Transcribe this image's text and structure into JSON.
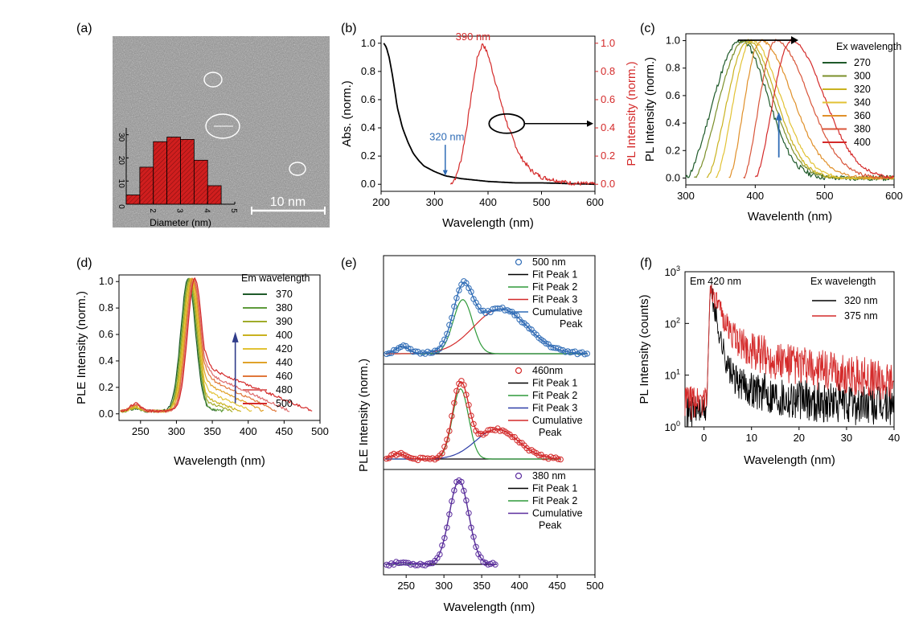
{
  "colors": {
    "black": "#000000",
    "red": "#d42a2a",
    "blue": "#2f6cb6",
    "green": "#2f9a3a",
    "purple": "#5b2c9e",
    "hist": "#d01e1e",
    "tem_bg": "#9a9a9a"
  },
  "chart_data": [
    {
      "panel": "(a)",
      "type": "bar",
      "title": "",
      "xlabel": "Diameter (nm)",
      "ylabel": "",
      "x_ticks": [
        "2",
        "3",
        "4",
        "5"
      ],
      "y_ticks": [
        "0",
        "10",
        "20",
        "30"
      ],
      "x": [
        1.25,
        1.75,
        2.25,
        2.75,
        3.25,
        3.75,
        4.25
      ],
      "values": [
        4,
        16,
        27,
        29,
        28,
        19,
        8
      ],
      "xlim": [
        1,
        5
      ],
      "ylim": [
        0,
        33
      ],
      "scale_bar": "10 nm"
    },
    {
      "panel": "(b)",
      "type": "line",
      "xlabel": "Wavelength (nm)",
      "ylabel": "Abs. (norm.)",
      "ylabel_right": "PL Intensity (norm.)",
      "xlim": [
        200,
        600
      ],
      "ylim": [
        -0.05,
        1.05
      ],
      "x_ticks": [
        "200",
        "300",
        "400",
        "500",
        "600"
      ],
      "y_ticks": [
        "0.0",
        "0.2",
        "0.4",
        "0.6",
        "0.8",
        "1.0"
      ],
      "annotations": [
        "390 nm",
        "320 nm"
      ],
      "series": [
        {
          "axis": "left",
          "color": "#000000",
          "x": [
            205,
            210,
            215,
            220,
            225,
            230,
            240,
            250,
            260,
            270,
            280,
            300,
            320,
            350,
            400,
            450,
            500,
            600
          ],
          "y": [
            1.0,
            0.97,
            0.9,
            0.8,
            0.68,
            0.55,
            0.4,
            0.3,
            0.22,
            0.17,
            0.13,
            0.09,
            0.06,
            0.04,
            0.02,
            0.01,
            0.01,
            0.0
          ]
        },
        {
          "axis": "right",
          "color": "#d42a2a",
          "x": [
            330,
            340,
            350,
            360,
            370,
            380,
            390,
            400,
            410,
            420,
            430,
            440,
            460,
            480,
            500,
            550,
            600
          ],
          "y": [
            0.0,
            0.05,
            0.18,
            0.4,
            0.66,
            0.9,
            1.0,
            0.92,
            0.78,
            0.64,
            0.5,
            0.38,
            0.2,
            0.1,
            0.05,
            0.01,
            0.0
          ]
        }
      ]
    },
    {
      "panel": "(c)",
      "type": "line",
      "xlabel": "Wavelenth (nm)",
      "ylabel": "PL Intensity (norm.)",
      "legend_title": "Ex wavelength",
      "xlim": [
        300,
        600
      ],
      "ylim": [
        -0.05,
        1.05
      ],
      "x_ticks": [
        "300",
        "400",
        "500",
        "600"
      ],
      "y_ticks": [
        "0.0",
        "0.2",
        "0.4",
        "0.6",
        "0.8",
        "1.0"
      ],
      "series": [
        {
          "name": "270",
          "color": "#1f5a2a",
          "peak": 380,
          "start": 300,
          "width": 50
        },
        {
          "name": "300",
          "color": "#7b8f2a",
          "peak": 385,
          "start": 312,
          "width": 52
        },
        {
          "name": "320",
          "color": "#c9b21f",
          "peak": 390,
          "start": 330,
          "width": 52
        },
        {
          "name": "340",
          "color": "#e2c234",
          "peak": 395,
          "start": 343,
          "width": 55
        },
        {
          "name": "360",
          "color": "#e0902a",
          "peak": 408,
          "start": 362,
          "width": 60
        },
        {
          "name": "380",
          "color": "#d8553a",
          "peak": 430,
          "start": 383,
          "width": 62
        },
        {
          "name": "400",
          "color": "#d42a2a",
          "peak": 452,
          "start": 400,
          "width": 62
        }
      ]
    },
    {
      "panel": "(d)",
      "type": "line",
      "xlabel": "Wavelength (nm)",
      "ylabel": "PLE Intensity (norm.)",
      "legend_title": "Em wavelength",
      "xlim": [
        220,
        500
      ],
      "ylim": [
        -0.05,
        1.05
      ],
      "x_ticks": [
        "250",
        "300",
        "350",
        "400",
        "450",
        "500"
      ],
      "y_ticks": [
        "0.0",
        "0.2",
        "0.4",
        "0.6",
        "0.8",
        "1.0"
      ],
      "series": [
        {
          "name": "370",
          "color": "#1f5a2a",
          "end": 355,
          "shoulder": 0.0
        },
        {
          "name": "380",
          "color": "#5e9b3c",
          "end": 366,
          "shoulder": 0.03
        },
        {
          "name": "390",
          "color": "#a0ab2a",
          "end": 378,
          "shoulder": 0.07
        },
        {
          "name": "400",
          "color": "#c9b21f",
          "end": 390,
          "shoulder": 0.1
        },
        {
          "name": "420",
          "color": "#e2c234",
          "end": 405,
          "shoulder": 0.15
        },
        {
          "name": "440",
          "color": "#e0a22a",
          "end": 422,
          "shoulder": 0.2
        },
        {
          "name": "460",
          "color": "#e0773a",
          "end": 440,
          "shoulder": 0.25
        },
        {
          "name": "480",
          "color": "#dd6b6b",
          "end": 458,
          "shoulder": 0.28
        },
        {
          "name": "500",
          "color": "#d42a2a",
          "end": 490,
          "shoulder": 0.32
        }
      ]
    },
    {
      "panel": "(e)",
      "type": "line",
      "xlabel": "Wavelength (nm)",
      "ylabel": "PLE Intensity (norm.)",
      "xlim": [
        220,
        500
      ],
      "x_ticks": [
        "250",
        "300",
        "350",
        "400",
        "450",
        "500"
      ],
      "subplots": [
        {
          "legend": [
            "500 nm",
            "Fit Peak 1",
            "Fit Peak 2",
            "Fit Peak 3",
            "Cumulative Peak"
          ],
          "data_color": "#2f6cb6",
          "xmax": 490,
          "peaks": [
            {
              "c": 245,
              "a": 0.08,
              "w": 12
            },
            {
              "c": 325,
              "a": 0.58,
              "w": 18
            },
            {
              "c": 375,
              "a": 0.48,
              "w": 50
            }
          ]
        },
        {
          "legend": [
            "460nm",
            "Fit Peak 1",
            "Fit Peak 2",
            "Fit Peak 3",
            "Cumulative Peak"
          ],
          "data_color": "#d42a2a",
          "xmax": 455,
          "peaks": [
            {
              "c": 240,
              "a": 0.06,
              "w": 12
            },
            {
              "c": 322,
              "a": 0.78,
              "w": 15
            },
            {
              "c": 370,
              "a": 0.33,
              "w": 40
            }
          ]
        },
        {
          "legend": [
            "380 nm",
            "Fit Peak 1",
            "Fit Peak 2",
            "Cumulative Peak"
          ],
          "data_color": "#5b2c9e",
          "xmax": 370,
          "peaks": [
            {
              "c": 245,
              "a": 0.02,
              "w": 12
            },
            {
              "c": 320,
              "a": 0.93,
              "w": 18
            }
          ]
        }
      ]
    },
    {
      "panel": "(f)",
      "type": "line",
      "xlabel": "Wavelength (nm)",
      "ylabel": "PL Intensity (counts)",
      "legend_title": "Ex wavelength",
      "annotation": "Em 420 nm",
      "xlim": [
        -4,
        40
      ],
      "ylim": [
        1,
        1000
      ],
      "yscale": "log",
      "x_ticks": [
        "0",
        "10",
        "20",
        "30",
        "40"
      ],
      "y_ticks": [
        "10^0",
        "10^1",
        "10^2",
        "10^3"
      ],
      "series": [
        {
          "name": "320 nm",
          "color": "#000000"
        },
        {
          "name": "375 nm",
          "color": "#d42a2a"
        }
      ]
    }
  ]
}
